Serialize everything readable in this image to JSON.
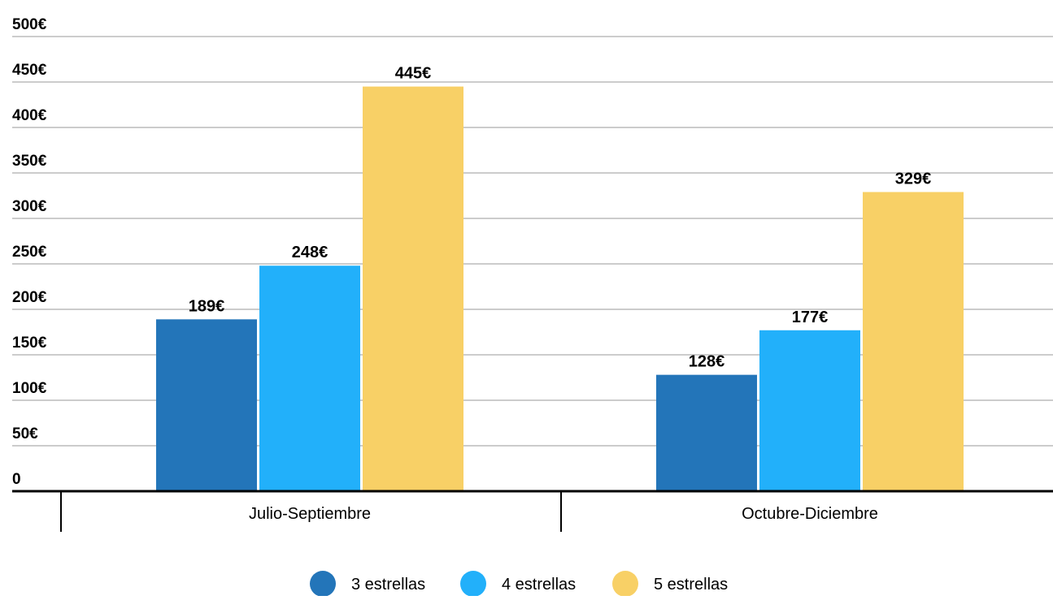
{
  "chart_data": {
    "type": "bar",
    "categories": [
      "Julio-Septiembre",
      "Octubre-Diciembre"
    ],
    "series": [
      {
        "name": "3 estrellas",
        "color": "#2375b9",
        "values": [
          189,
          128
        ]
      },
      {
        "name": "4 estrellas",
        "color": "#22b0fa",
        "values": [
          248,
          177
        ]
      },
      {
        "name": "5 estrellas",
        "color": "#f8d066",
        "values": [
          445,
          329
        ]
      }
    ],
    "value_suffix": "€",
    "ylim": [
      0,
      500
    ],
    "yticks": [
      0,
      50,
      100,
      150,
      200,
      250,
      300,
      350,
      400,
      450,
      500
    ],
    "ytick_labels": [
      "0",
      "50€",
      "100€",
      "150€",
      "200€",
      "250€",
      "300€",
      "350€",
      "400€",
      "450€",
      "500€"
    ],
    "grid": true,
    "legend": "bottom-center",
    "title": "",
    "xlabel": "",
    "ylabel": ""
  }
}
